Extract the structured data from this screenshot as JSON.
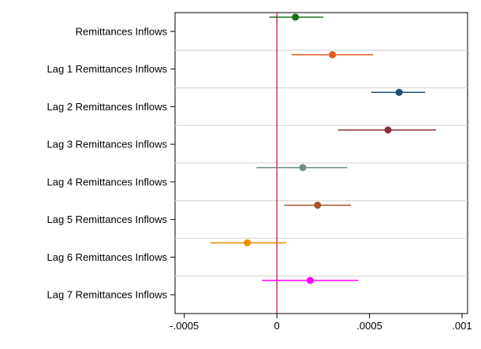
{
  "chart_data": {
    "type": "coefficient-plot",
    "title": "",
    "xlabel": "",
    "ylabel": "",
    "xlim": [
      -0.00055,
      0.00103
    ],
    "x_ticks": [
      -0.0005,
      0,
      0.0005,
      0.001
    ],
    "x_tick_labels": [
      "-.0005",
      "0",
      ".0005",
      ".001"
    ],
    "reference_line": {
      "x": 0,
      "color": "#c0003c"
    },
    "grid": true,
    "legend": "none",
    "series": [
      {
        "label": "Remittances Inflows",
        "estimate": 0.0001,
        "ci": [
          -4e-05,
          0.00025
        ],
        "color": "#1a6e1a"
      },
      {
        "label": "Lag 1 Remittances Inflows",
        "estimate": 0.0003,
        "ci": [
          8e-05,
          0.00052
        ],
        "color": "#e8591a"
      },
      {
        "label": "Lag 2 Remittances Inflows",
        "estimate": 0.00066,
        "ci": [
          0.00051,
          0.0008
        ],
        "color": "#1f4e79"
      },
      {
        "label": "Lag 3 Remittances Inflows",
        "estimate": 0.0006,
        "ci": [
          0.00033,
          0.00086
        ],
        "color": "#8b2e3c"
      },
      {
        "label": "Lag 4 Remittances Inflows",
        "estimate": 0.00014,
        "ci": [
          -0.00011,
          0.00038
        ],
        "color": "#6e8f80"
      },
      {
        "label": "Lag 5 Remittances Inflows",
        "estimate": 0.00022,
        "ci": [
          4e-05,
          0.0004
        ],
        "color": "#a0522d"
      },
      {
        "label": "Lag 6 Remittances Inflows",
        "estimate": -0.00016,
        "ci": [
          -0.00036,
          5e-05
        ],
        "color": "#f08c00"
      },
      {
        "label": "Lag 7 Remittances Inflows",
        "estimate": 0.00018,
        "ci": [
          -8e-05,
          0.00044
        ],
        "color": "#ff00ff"
      }
    ]
  }
}
